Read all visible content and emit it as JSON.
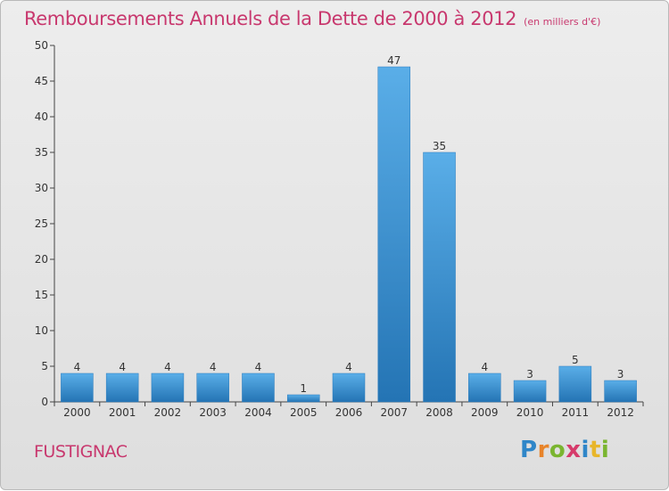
{
  "title": "Remboursements Annuels de la Dette de 2000 à 2012",
  "unit": "(en milliers d'€)",
  "commune": "FUSTIGNAC",
  "logo": [
    "P",
    "r",
    "o",
    "x",
    "i",
    "t",
    "i"
  ],
  "colors": {
    "bar_light": "#5aaee8",
    "bar_dark": "#2474b4",
    "title": "#c8386e",
    "axis": "#444444"
  },
  "chart_data": {
    "type": "bar",
    "categories": [
      "2000",
      "2001",
      "2002",
      "2003",
      "2004",
      "2005",
      "2006",
      "2007",
      "2008",
      "2009",
      "2010",
      "2011",
      "2012"
    ],
    "values": [
      4,
      4,
      4,
      4,
      4,
      1,
      4,
      47,
      35,
      4,
      3,
      5,
      3
    ],
    "data_labels": [
      "4",
      "4",
      "4",
      "4",
      "4",
      "1",
      "4",
      "47",
      "35",
      "4",
      "3",
      "5",
      "3"
    ],
    "ylim": [
      0,
      50
    ],
    "yticks": [
      0,
      5,
      10,
      15,
      20,
      25,
      30,
      35,
      40,
      45,
      50
    ],
    "grid": false
  }
}
